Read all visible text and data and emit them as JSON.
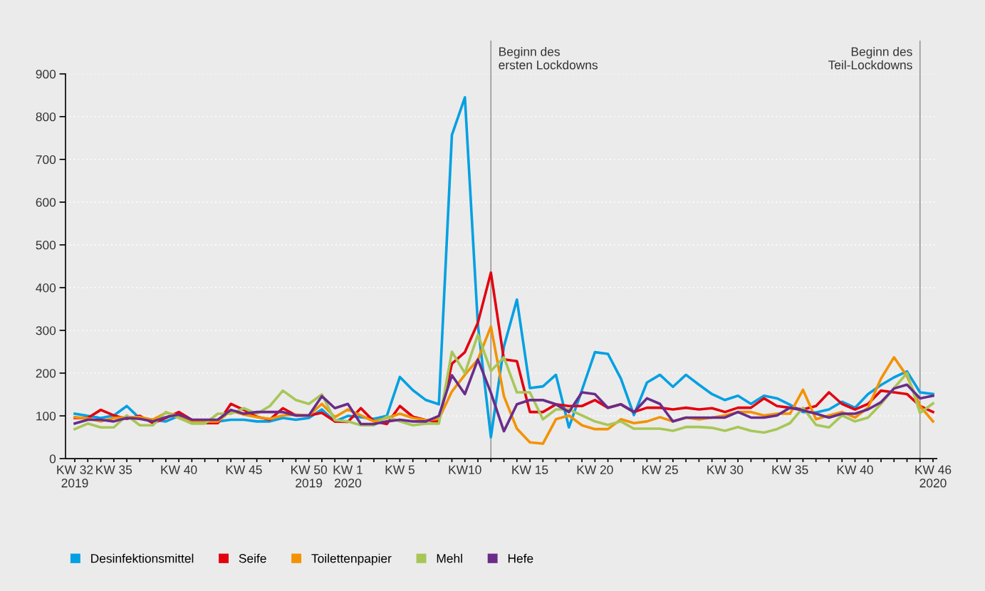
{
  "chart_data": {
    "type": "line",
    "x": [
      "2019-08-08",
      "2019-08-15",
      "2019-08-22",
      "2019-08-29",
      "2019-09-05",
      "2019-09-12",
      "2019-09-19",
      "2019-09-26",
      "2019-10-03",
      "2019-10-10",
      "2019-10-17",
      "2019-10-24",
      "2019-10-31",
      "2019-11-07",
      "2019-11-14",
      "2019-11-21",
      "2019-11-28",
      "2019-12-05",
      "2019-12-12",
      "2019-12-19",
      "2019-12-26",
      "2020-01-02",
      "2020-01-09",
      "2020-01-16",
      "2020-01-23",
      "2020-01-30",
      "2020-02-06",
      "2020-02-13",
      "2020-02-20",
      "2020-02-27",
      "2020-03-05",
      "2020-03-12",
      "2020-03-19",
      "2020-03-26",
      "2020-04-02",
      "2020-04-09",
      "2020-04-16",
      "2020-04-23",
      "2020-04-30",
      "2020-05-07",
      "2020-05-14",
      "2020-05-21",
      "2020-05-28",
      "2020-06-04",
      "2020-06-11",
      "2020-06-18",
      "2020-06-25",
      "2020-07-02",
      "2020-07-09",
      "2020-07-16",
      "2020-07-23",
      "2020-07-30",
      "2020-08-06",
      "2020-08-13",
      "2020-08-20",
      "2020-08-27",
      "2020-09-03",
      "2020-09-10",
      "2020-09-17",
      "2020-09-24",
      "2020-10-01",
      "2020-10-08",
      "2020-10-15",
      "2020-10-22",
      "2020-10-29",
      "2020-11-05",
      "2020-11-12"
    ],
    "xlim": [
      "2019-08-03",
      "2020-11-14"
    ],
    "xticks": [
      {
        "value": "2019-08-08",
        "label": "KW 32\n2019"
      },
      {
        "value": "2019-08-15",
        "label": null
      },
      {
        "value": "2019-08-22",
        "label": null
      },
      {
        "value": "2019-08-29",
        "label": "KW 35"
      },
      {
        "value": "2019-09-05",
        "label": null
      },
      {
        "value": "2019-09-12",
        "label": null
      },
      {
        "value": "2019-09-19",
        "label": null
      },
      {
        "value": "2019-09-26",
        "label": null
      },
      {
        "value": "2019-10-03",
        "label": "KW 40"
      },
      {
        "value": "2019-10-10",
        "label": null
      },
      {
        "value": "2019-10-17",
        "label": null
      },
      {
        "value": "2019-10-24",
        "label": null
      },
      {
        "value": "2019-10-31",
        "label": null
      },
      {
        "value": "2019-11-07",
        "label": "KW 45"
      },
      {
        "value": "2019-11-14",
        "label": null
      },
      {
        "value": "2019-11-21",
        "label": null
      },
      {
        "value": "2019-11-28",
        "label": null
      },
      {
        "value": "2019-12-05",
        "label": null
      },
      {
        "value": "2019-12-12",
        "label": "KW 50\n2019"
      },
      {
        "value": "2019-12-19",
        "label": null
      },
      {
        "value": "2019-12-26",
        "label": null
      },
      {
        "value": "2020-01-02",
        "label": "KW 1\n2020"
      },
      {
        "value": "2020-01-09",
        "label": null
      },
      {
        "value": "2020-01-16",
        "label": null
      },
      {
        "value": "2020-01-23",
        "label": null
      },
      {
        "value": "2020-01-30",
        "label": "KW 5"
      },
      {
        "value": "2020-02-06",
        "label": null
      },
      {
        "value": "2020-02-13",
        "label": null
      },
      {
        "value": "2020-02-20",
        "label": null
      },
      {
        "value": "2020-02-27",
        "label": null
      },
      {
        "value": "2020-03-05",
        "label": "KW10"
      },
      {
        "value": "2020-03-12",
        "label": null
      },
      {
        "value": "2020-03-19",
        "label": null
      },
      {
        "value": "2020-03-26",
        "label": null
      },
      {
        "value": "2020-04-02",
        "label": null
      },
      {
        "value": "2020-04-09",
        "label": "KW 15"
      },
      {
        "value": "2020-04-16",
        "label": null
      },
      {
        "value": "2020-04-23",
        "label": null
      },
      {
        "value": "2020-04-30",
        "label": null
      },
      {
        "value": "2020-05-07",
        "label": null
      },
      {
        "value": "2020-05-14",
        "label": "KW 20"
      },
      {
        "value": "2020-05-21",
        "label": null
      },
      {
        "value": "2020-05-28",
        "label": null
      },
      {
        "value": "2020-06-04",
        "label": null
      },
      {
        "value": "2020-06-11",
        "label": null
      },
      {
        "value": "2020-06-18",
        "label": "KW 25"
      },
      {
        "value": "2020-06-25",
        "label": null
      },
      {
        "value": "2020-07-02",
        "label": null
      },
      {
        "value": "2020-07-09",
        "label": null
      },
      {
        "value": "2020-07-16",
        "label": null
      },
      {
        "value": "2020-07-23",
        "label": "KW 30"
      },
      {
        "value": "2020-07-30",
        "label": null
      },
      {
        "value": "2020-08-06",
        "label": null
      },
      {
        "value": "2020-08-13",
        "label": null
      },
      {
        "value": "2020-08-20",
        "label": null
      },
      {
        "value": "2020-08-27",
        "label": "KW 35"
      },
      {
        "value": "2020-09-03",
        "label": null
      },
      {
        "value": "2020-09-10",
        "label": null
      },
      {
        "value": "2020-09-17",
        "label": null
      },
      {
        "value": "2020-09-24",
        "label": null
      },
      {
        "value": "2020-10-01",
        "label": "KW 40"
      },
      {
        "value": "2020-10-08",
        "label": null
      },
      {
        "value": "2020-10-15",
        "label": null
      },
      {
        "value": "2020-10-22",
        "label": null
      },
      {
        "value": "2020-10-29",
        "label": null
      },
      {
        "value": "2020-11-05",
        "label": null
      },
      {
        "value": "2020-11-12",
        "label": "KW 46\n2020"
      }
    ],
    "series": [
      {
        "name": "Desinfektionsmittel",
        "color": "#00a0e3",
        "values": [
          105,
          100,
          95,
          101,
          123,
          94,
          91,
          87,
          100,
          87,
          87,
          87,
          91,
          91,
          87,
          87,
          95,
          91,
          95,
          115,
          87,
          100,
          97,
          93,
          100,
          191,
          160,
          137,
          127,
          757,
          845,
          312,
          50,
          262,
          372,
          165,
          169,
          196,
          73,
          160,
          249,
          245,
          187,
          102,
          178,
          196,
          168,
          196,
          173,
          151,
          137,
          147,
          128,
          147,
          141,
          126,
          109,
          108,
          115,
          133,
          119,
          151,
          172,
          190,
          204,
          155,
          151
        ]
      },
      {
        "name": "Seife",
        "color": "#e3000f",
        "values": [
          95,
          95,
          114,
          101,
          93,
          100,
          83,
          95,
          109,
          91,
          83,
          83,
          128,
          114,
          98,
          91,
          118,
          101,
          101,
          107,
          87,
          86,
          118,
          87,
          81,
          123,
          98,
          90,
          87,
          222,
          249,
          318,
          435,
          232,
          228,
          109,
          109,
          127,
          123,
          123,
          137,
          119,
          127,
          109,
          119,
          119,
          115,
          119,
          115,
          118,
          109,
          119,
          119,
          141,
          123,
          119,
          115,
          123,
          155,
          128,
          115,
          128,
          159,
          155,
          151,
          123,
          109
        ]
      },
      {
        "name": "Toilettenpapier",
        "color": "#f39200",
        "values": [
          97,
          94,
          87,
          95,
          97,
          97,
          91,
          107,
          101,
          87,
          87,
          87,
          112,
          103,
          97,
          93,
          101,
          103,
          101,
          128,
          97,
          115,
          101,
          87,
          95,
          105,
          95,
          90,
          93,
          157,
          196,
          232,
          309,
          146,
          70,
          38,
          35,
          92,
          101,
          78,
          69,
          69,
          92,
          83,
          87,
          97,
          87,
          96,
          92,
          96,
          101,
          109,
          109,
          101,
          105,
          105,
          161,
          92,
          101,
          109,
          96,
          119,
          187,
          237,
          193,
          123,
          87
        ]
      },
      {
        "name": "Mehl",
        "color": "#a8c657",
        "values": [
          69,
          82,
          73,
          73,
          101,
          78,
          78,
          109,
          95,
          82,
          82,
          105,
          105,
          118,
          105,
          123,
          159,
          137,
          128,
          150,
          90,
          87,
          78,
          78,
          98,
          87,
          78,
          82,
          82,
          250,
          200,
          290,
          205,
          237,
          155,
          155,
          92,
          115,
          115,
          101,
          87,
          79,
          87,
          70,
          70,
          70,
          65,
          74,
          74,
          72,
          65,
          74,
          65,
          61,
          69,
          83,
          119,
          79,
          73,
          101,
          87,
          96,
          128,
          165,
          200,
          107,
          129
        ]
      },
      {
        "name": "Hefe",
        "color": "#6a2c8a",
        "values": [
          82,
          91,
          91,
          87,
          95,
          93,
          87,
          97,
          103,
          91,
          91,
          91,
          114,
          105,
          109,
          109,
          109,
          101,
          101,
          146,
          118,
          128,
          81,
          81,
          87,
          91,
          87,
          87,
          100,
          195,
          151,
          232,
          154,
          64,
          127,
          137,
          137,
          127,
          109,
          155,
          151,
          119,
          127,
          109,
          141,
          128,
          87,
          96,
          96,
          96,
          96,
          109,
          96,
          96,
          101,
          119,
          113,
          105,
          96,
          105,
          105,
          115,
          132,
          164,
          173,
          141,
          147
        ]
      }
    ],
    "ylim": [
      0,
      900
    ],
    "yticks": [
      0,
      100,
      200,
      300,
      400,
      500,
      600,
      700,
      800,
      900
    ],
    "grid": "y",
    "legend": "bottom",
    "marker": "none",
    "line_style": "solid",
    "ref_lines": [
      {
        "axis": "x",
        "value": "2020-03-19",
        "label": "Beginn des\nersten Lockdowns",
        "color": "#999999"
      },
      {
        "axis": "x",
        "value": "2020-11-05",
        "label": "Beginn des\nTeil-Lockdowns",
        "color": "#999999"
      }
    ]
  }
}
